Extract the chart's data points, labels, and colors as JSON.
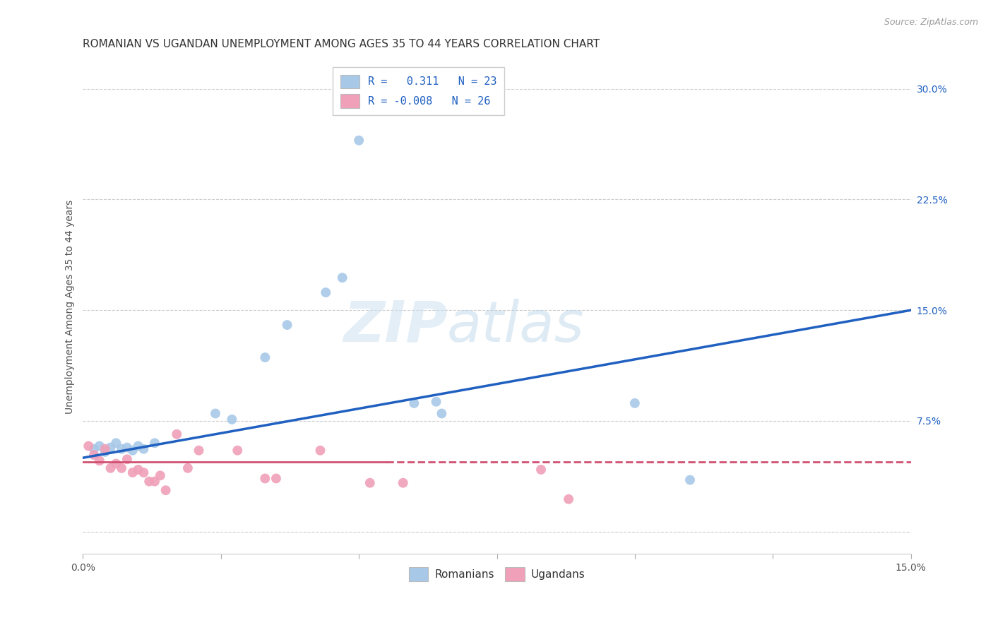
{
  "title": "ROMANIAN VS UGANDAN UNEMPLOYMENT AMONG AGES 35 TO 44 YEARS CORRELATION CHART",
  "source": "Source: ZipAtlas.com",
  "ylabel": "Unemployment Among Ages 35 to 44 years",
  "xlim": [
    0.0,
    0.15
  ],
  "ylim": [
    -0.015,
    0.32
  ],
  "yticks": [
    0.0,
    0.075,
    0.15,
    0.225,
    0.3
  ],
  "ytick_labels": [
    "",
    "7.5%",
    "15.0%",
    "22.5%",
    "30.0%"
  ],
  "xticks": [
    0.0,
    0.025,
    0.05,
    0.075,
    0.1,
    0.125,
    0.15
  ],
  "xtick_labels": [
    "0.0%",
    "",
    "",
    "",
    "",
    "",
    "15.0%"
  ],
  "grid_color": "#cccccc",
  "background_color": "#ffffff",
  "watermark_zip": "ZIP",
  "watermark_atlas": "atlas",
  "legend_r_romanian": "0.311",
  "legend_n_romanian": "23",
  "legend_r_ugandan": "-0.008",
  "legend_n_ugandan": "26",
  "romanian_color": "#a8c8e8",
  "ugandan_color": "#f0a0b8",
  "trendline_romanian_color": "#2060c0",
  "trendline_ugandan_color": "#d05070",
  "romanian_trendline": [
    [
      0.0,
      0.05
    ],
    [
      0.15,
      0.15
    ]
  ],
  "ugandan_trendline_solid": [
    [
      0.0,
      0.047
    ],
    [
      0.055,
      0.047
    ]
  ],
  "ugandan_trendline_dashed": [
    [
      0.055,
      0.047
    ],
    [
      0.15,
      0.047
    ]
  ],
  "romanian_points": [
    [
      0.002,
      0.056
    ],
    [
      0.003,
      0.058
    ],
    [
      0.004,
      0.054
    ],
    [
      0.005,
      0.057
    ],
    [
      0.006,
      0.06
    ],
    [
      0.007,
      0.056
    ],
    [
      0.008,
      0.057
    ],
    [
      0.009,
      0.055
    ],
    [
      0.01,
      0.058
    ],
    [
      0.011,
      0.056
    ],
    [
      0.013,
      0.06
    ],
    [
      0.024,
      0.08
    ],
    [
      0.027,
      0.076
    ],
    [
      0.033,
      0.118
    ],
    [
      0.037,
      0.14
    ],
    [
      0.044,
      0.162
    ],
    [
      0.047,
      0.172
    ],
    [
      0.05,
      0.265
    ],
    [
      0.06,
      0.087
    ],
    [
      0.064,
      0.088
    ],
    [
      0.065,
      0.08
    ],
    [
      0.1,
      0.087
    ],
    [
      0.11,
      0.035
    ]
  ],
  "ugandan_points": [
    [
      0.001,
      0.058
    ],
    [
      0.002,
      0.052
    ],
    [
      0.003,
      0.048
    ],
    [
      0.004,
      0.056
    ],
    [
      0.005,
      0.043
    ],
    [
      0.006,
      0.046
    ],
    [
      0.007,
      0.043
    ],
    [
      0.008,
      0.049
    ],
    [
      0.009,
      0.04
    ],
    [
      0.01,
      0.042
    ],
    [
      0.011,
      0.04
    ],
    [
      0.012,
      0.034
    ],
    [
      0.013,
      0.034
    ],
    [
      0.014,
      0.038
    ],
    [
      0.015,
      0.028
    ],
    [
      0.017,
      0.066
    ],
    [
      0.019,
      0.043
    ],
    [
      0.021,
      0.055
    ],
    [
      0.028,
      0.055
    ],
    [
      0.033,
      0.036
    ],
    [
      0.035,
      0.036
    ],
    [
      0.043,
      0.055
    ],
    [
      0.052,
      0.033
    ],
    [
      0.058,
      0.033
    ],
    [
      0.083,
      0.042
    ],
    [
      0.088,
      0.022
    ]
  ],
  "marker_size": 100,
  "title_fontsize": 11,
  "axis_label_fontsize": 10,
  "tick_fontsize": 10,
  "legend_fontsize": 11
}
